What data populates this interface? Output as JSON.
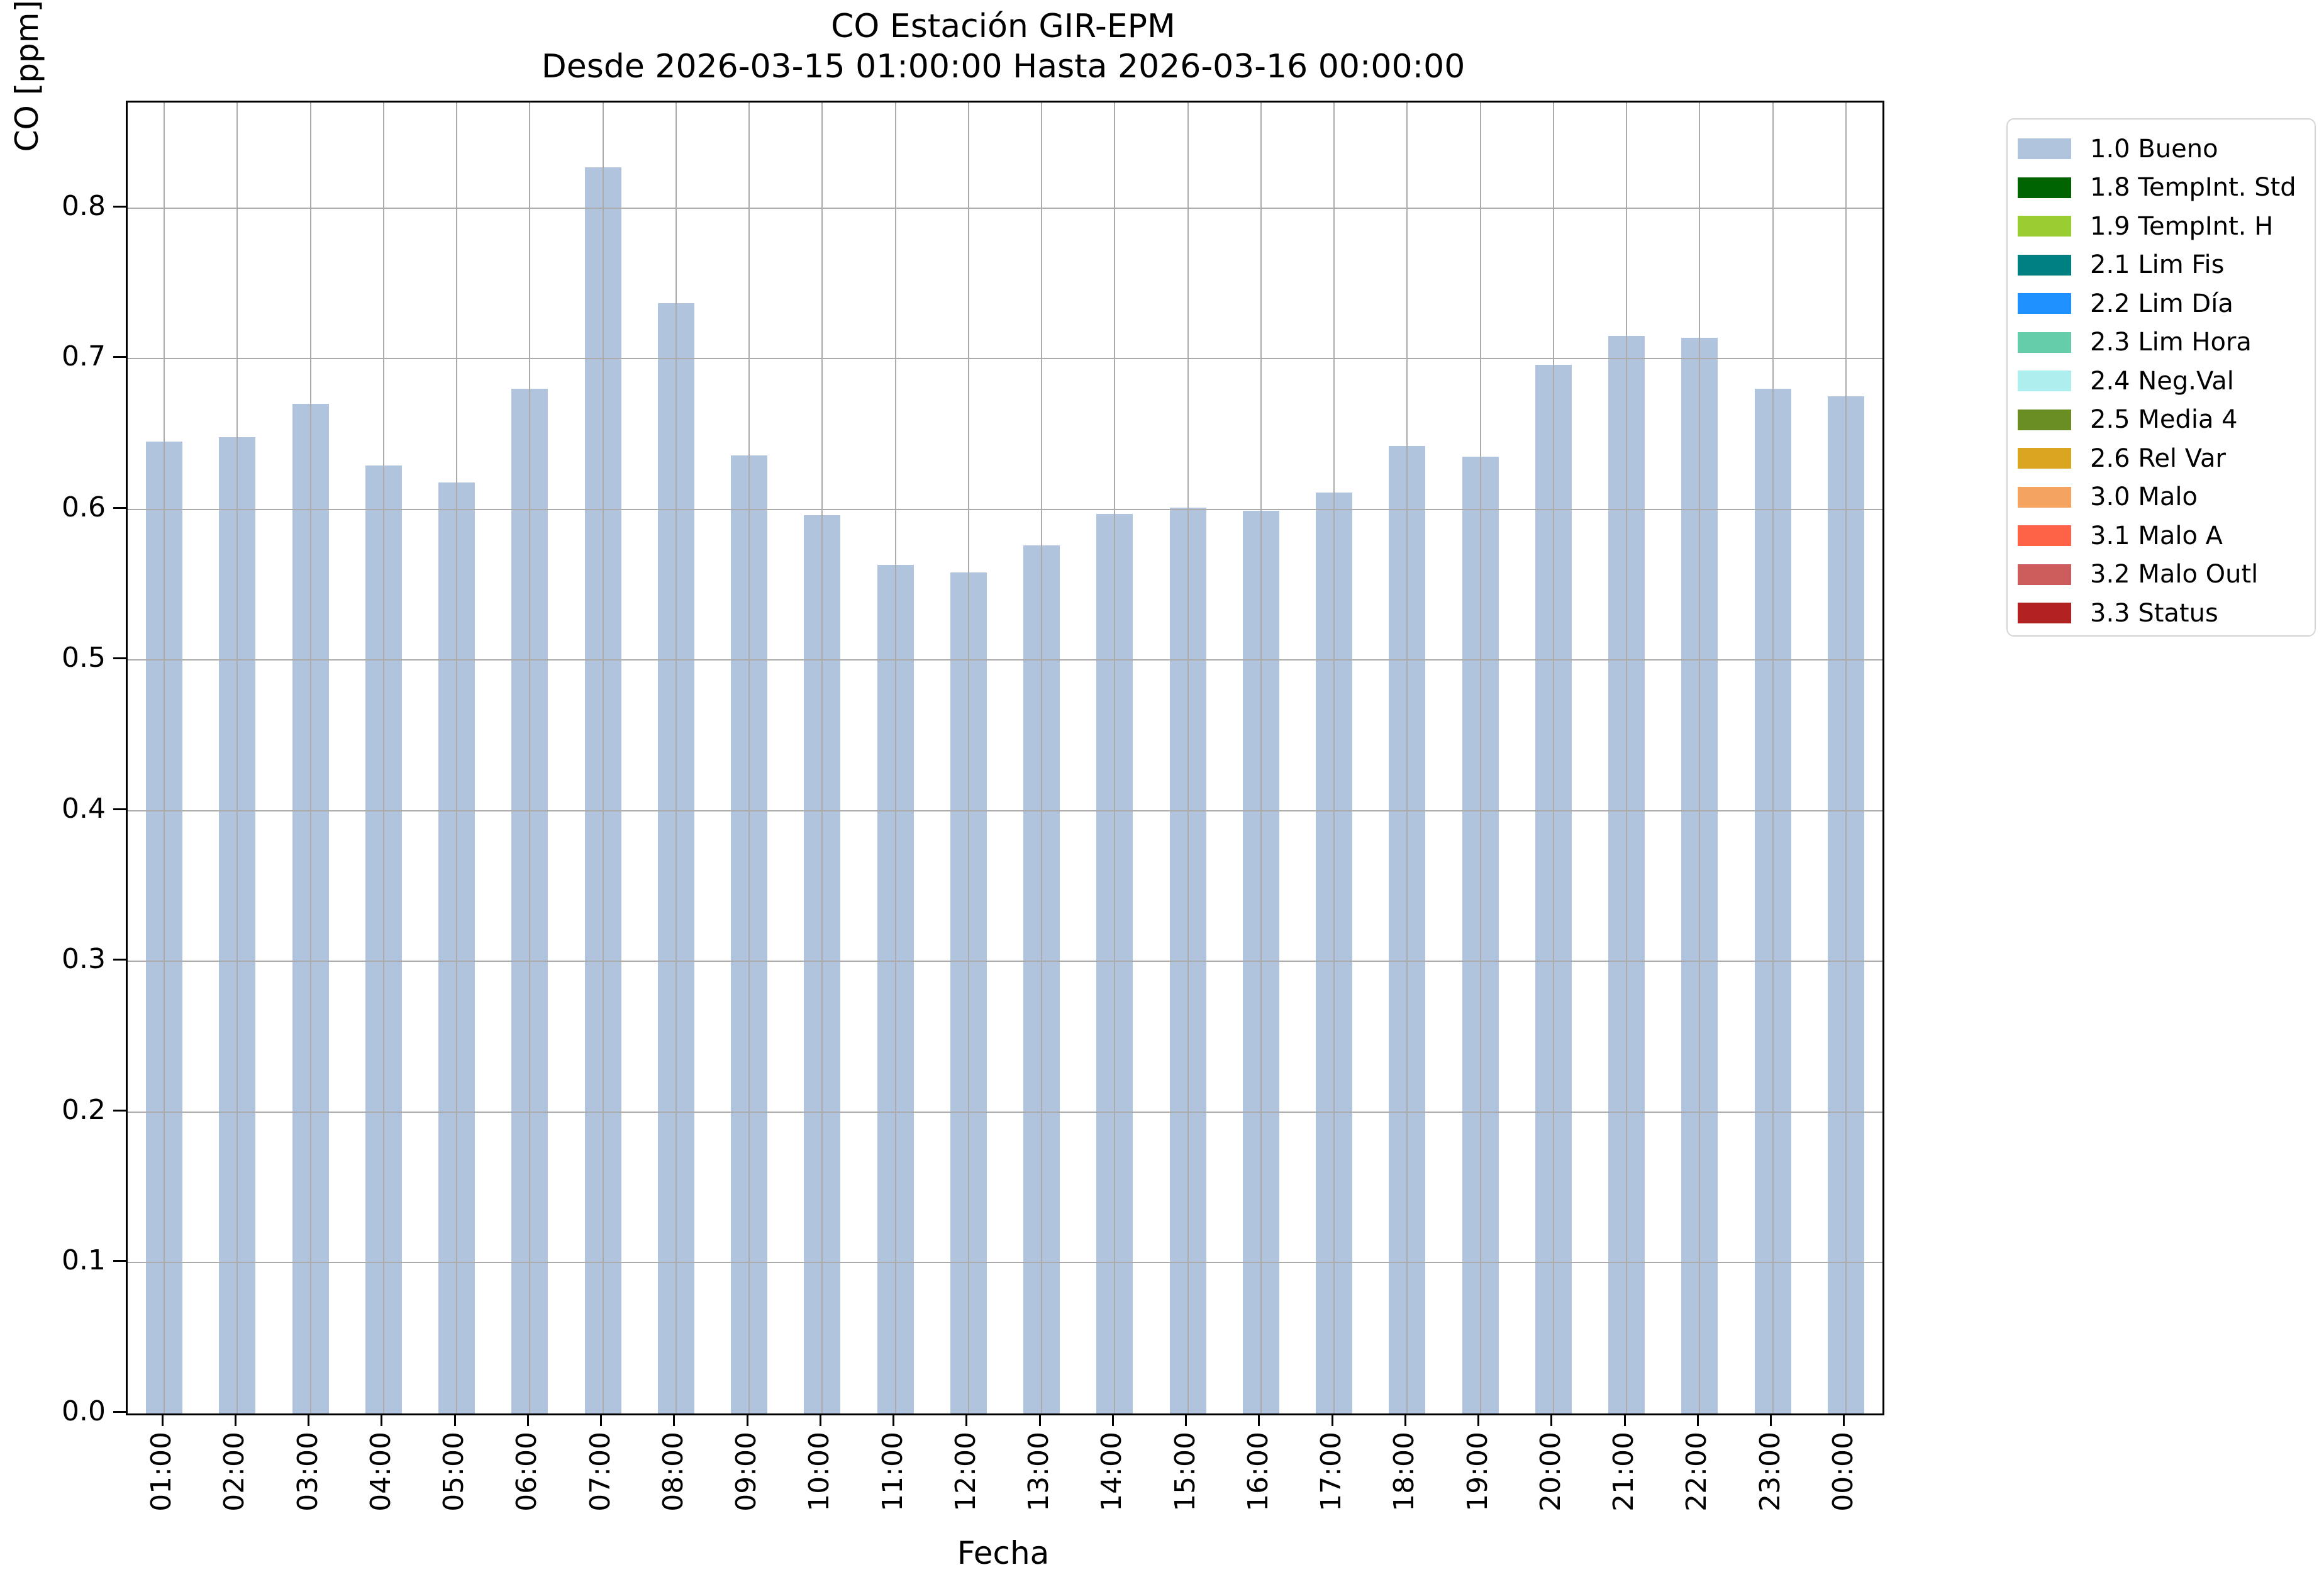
{
  "chart_data": {
    "type": "bar",
    "title": "CO Estación GIR-EPM",
    "subtitle": "Desde 2026-03-15 01:00:00 Hasta 2026-03-16 00:00:00",
    "xlabel": "Fecha",
    "ylabel": "CO [ppm]",
    "categories": [
      "01:00",
      "02:00",
      "03:00",
      "04:00",
      "05:00",
      "06:00",
      "07:00",
      "08:00",
      "09:00",
      "10:00",
      "11:00",
      "12:00",
      "13:00",
      "14:00",
      "15:00",
      "16:00",
      "17:00",
      "18:00",
      "19:00",
      "20:00",
      "21:00",
      "22:00",
      "23:00",
      "00:00"
    ],
    "values": [
      0.645,
      0.648,
      0.67,
      0.629,
      0.618,
      0.68,
      0.827,
      0.737,
      0.636,
      0.596,
      0.563,
      0.558,
      0.576,
      0.597,
      0.601,
      0.599,
      0.611,
      0.642,
      0.635,
      0.696,
      0.715,
      0.714,
      0.68,
      0.675
    ],
    "series_name": "1.0 Bueno",
    "bar_color": "#b0c4de",
    "yticks": [
      "0.0",
      "0.1",
      "0.2",
      "0.3",
      "0.4",
      "0.5",
      "0.6",
      "0.7",
      "0.8"
    ],
    "ytick_values": [
      0.0,
      0.1,
      0.2,
      0.3,
      0.4,
      0.5,
      0.6,
      0.7,
      0.8
    ],
    "ylim": [
      0,
      0.87
    ],
    "grid": true,
    "grid_color": "#ababab",
    "legend_position": "outside-upper-right",
    "legend": [
      {
        "label": "1.0 Bueno",
        "color": "#b0c4de"
      },
      {
        "label": "1.8 TempInt. Std",
        "color": "#006400"
      },
      {
        "label": "1.9 TempInt. H",
        "color": "#9acd32"
      },
      {
        "label": "2.1 Lim Fis",
        "color": "#008080"
      },
      {
        "label": "2.2 Lim Día",
        "color": "#1e90ff"
      },
      {
        "label": "2.3 Lim Hora",
        "color": "#66cdaa"
      },
      {
        "label": "2.4 Neg.Val",
        "color": "#afeeee"
      },
      {
        "label": "2.5 Media 4",
        "color": "#6b8e23"
      },
      {
        "label": "2.6 Rel Var",
        "color": "#daa520"
      },
      {
        "label": "3.0 Malo",
        "color": "#f4a460"
      },
      {
        "label": "3.1 Malo A",
        "color": "#ff6347"
      },
      {
        "label": "3.2 Malo Outl",
        "color": "#cd5c5c"
      },
      {
        "label": "3.3 Status",
        "color": "#b22222"
      }
    ]
  }
}
